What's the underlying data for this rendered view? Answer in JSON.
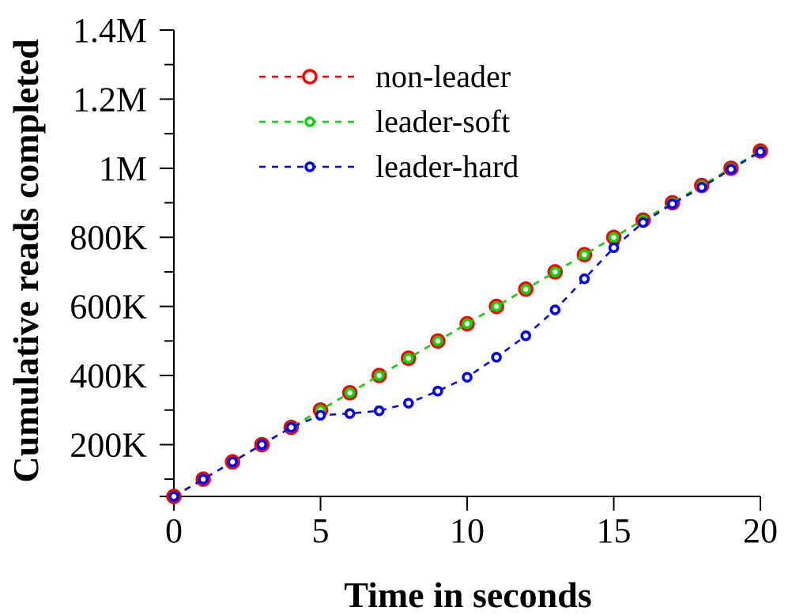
{
  "chart_data": {
    "type": "line",
    "title": "",
    "xlabel": "Time in seconds",
    "ylabel": "Cumulative reads completed",
    "xlim": [
      0,
      20
    ],
    "ylim": [
      50000,
      1400000
    ],
    "x_ticks": [
      0,
      5,
      10,
      15,
      20
    ],
    "x_tick_labels": [
      "0",
      "5",
      "10",
      "15",
      "20"
    ],
    "y_ticks": [
      200000,
      400000,
      600000,
      800000,
      1000000,
      1200000,
      1400000
    ],
    "y_tick_labels": [
      "200K",
      "400K",
      "600K",
      "800K",
      "1M",
      "1.2M",
      "1.4M"
    ],
    "y_minor_ticks": [
      100000,
      300000,
      500000,
      700000,
      900000,
      1100000,
      1300000
    ],
    "grid": false,
    "legend_position": "top-left",
    "x": [
      0,
      1,
      2,
      3,
      4,
      5,
      6,
      7,
      8,
      9,
      10,
      11,
      12,
      13,
      14,
      15,
      16,
      17,
      18,
      19,
      20
    ],
    "series": [
      {
        "name": "non-leader",
        "color": "#ff0000",
        "marker": "large-circle",
        "values": [
          50000,
          100000,
          150000,
          200000,
          250000,
          300000,
          350000,
          400000,
          450000,
          500000,
          550000,
          600000,
          650000,
          700000,
          750000,
          800000,
          850000,
          900000,
          950000,
          1000000,
          1050000
        ]
      },
      {
        "name": "leader-soft",
        "color": "#00dd00",
        "marker": "small-circle",
        "values": [
          50000,
          100000,
          150000,
          200000,
          250000,
          300000,
          350000,
          400000,
          450000,
          500000,
          550000,
          600000,
          650000,
          700000,
          750000,
          800000,
          850000,
          900000,
          950000,
          1000000,
          1050000
        ]
      },
      {
        "name": "leader-hard",
        "color": "#0000ff",
        "marker": "small-circle",
        "values": [
          50000,
          100000,
          150000,
          200000,
          250000,
          285000,
          290000,
          298000,
          320000,
          355000,
          395000,
          453000,
          515000,
          590000,
          680000,
          770000,
          843000,
          897000,
          945000,
          997000,
          1048000
        ]
      }
    ]
  }
}
